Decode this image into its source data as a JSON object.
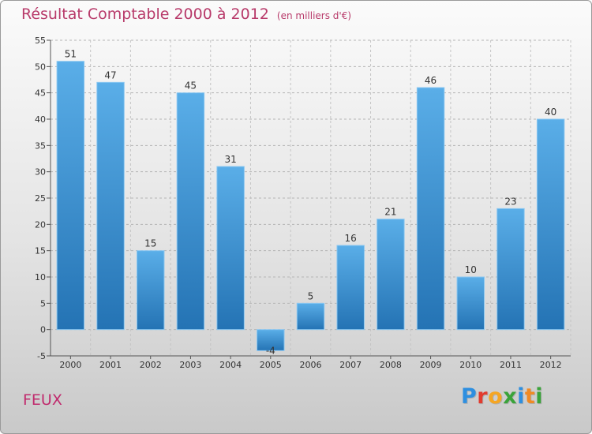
{
  "header": {
    "title": "Résultat Comptable 2000 à 2012",
    "unit": "(en milliers d'€)"
  },
  "commune": "FEUX",
  "brand": {
    "name": "Proxiti",
    "letters": [
      "P",
      "r",
      "o",
      "x",
      "i",
      "t",
      "i"
    ],
    "letter_colors": [
      "#2e8fe0",
      "#e23b2e",
      "#f5a623",
      "#3aa33a",
      "#2e8fe0",
      "#f08a24",
      "#3aa33a"
    ]
  },
  "colors": {
    "bar_top": "#5aaee8",
    "bar_bottom": "#2473b4",
    "title": "#b83a6a"
  },
  "chart_data": {
    "type": "bar",
    "title": "Résultat Comptable 2000 à 2012",
    "xlabel": "",
    "ylabel": "",
    "categories": [
      "2000",
      "2001",
      "2002",
      "2003",
      "2004",
      "2005",
      "2006",
      "2007",
      "2008",
      "2009",
      "2010",
      "2011",
      "2012"
    ],
    "values": [
      51,
      47,
      15,
      45,
      31,
      -4,
      5,
      16,
      21,
      46,
      10,
      23,
      40
    ],
    "ylim": [
      -5,
      55
    ],
    "yticks": [
      -5,
      0,
      5,
      10,
      15,
      20,
      25,
      30,
      35,
      40,
      45,
      50,
      55
    ],
    "grid": true,
    "data_labels": true
  }
}
